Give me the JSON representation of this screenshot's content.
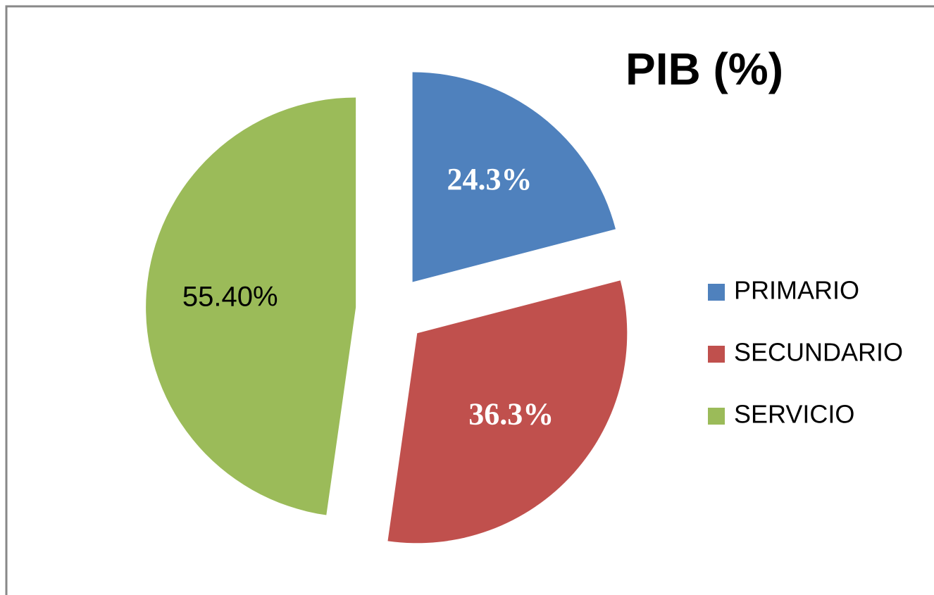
{
  "chart_data": {
    "type": "pie",
    "title": "PIB (%)",
    "categories": [
      "PRIMARIO",
      "SECUNDARIO",
      "SERVICIO"
    ],
    "values": [
      24.3,
      36.3,
      55.4
    ],
    "value_labels": [
      "24.3%",
      "36.3%",
      "55.40%"
    ],
    "colors": [
      "#4f81bd",
      "#c0504d",
      "#9bbb59"
    ],
    "legend": "right"
  }
}
